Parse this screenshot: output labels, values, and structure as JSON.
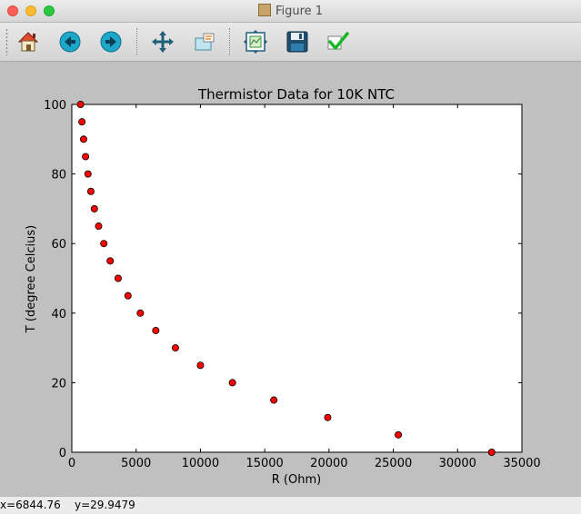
{
  "window": {
    "title": "Figure 1"
  },
  "toolbar": {
    "buttons": [
      "home",
      "back",
      "forward",
      "pan",
      "zoom",
      "subplots",
      "save",
      "edit"
    ]
  },
  "status": {
    "x_text": "x=6844.76",
    "y_text": "y=29.9479"
  },
  "colors": {
    "marker": "#ff0000",
    "marker_edge": "#000000",
    "plot_bg": "#ffffff",
    "figure_bg": "#c0c0c0"
  },
  "chart_data": {
    "type": "scatter",
    "title": "Thermistor Data for 10K NTC",
    "xlabel": "R (Ohm)",
    "ylabel": "T (degree Celcius)",
    "xlim": [
      0,
      35000
    ],
    "ylim": [
      0,
      100
    ],
    "xticks": [
      0,
      5000,
      10000,
      15000,
      20000,
      25000,
      30000,
      35000
    ],
    "yticks": [
      0,
      20,
      40,
      60,
      80,
      100
    ],
    "grid": false,
    "series": [
      {
        "name": "10K NTC",
        "x": [
          32650,
          25390,
          19900,
          15710,
          12490,
          10000,
          8057,
          6530,
          5327,
          4369,
          3603,
          2986,
          2488,
          2083,
          1752,
          1480,
          1256,
          1070,
          915,
          787,
          678
        ],
        "y": [
          0,
          5,
          10,
          15,
          20,
          25,
          30,
          35,
          40,
          45,
          50,
          55,
          60,
          65,
          70,
          75,
          80,
          85,
          90,
          95,
          100
        ]
      }
    ]
  }
}
